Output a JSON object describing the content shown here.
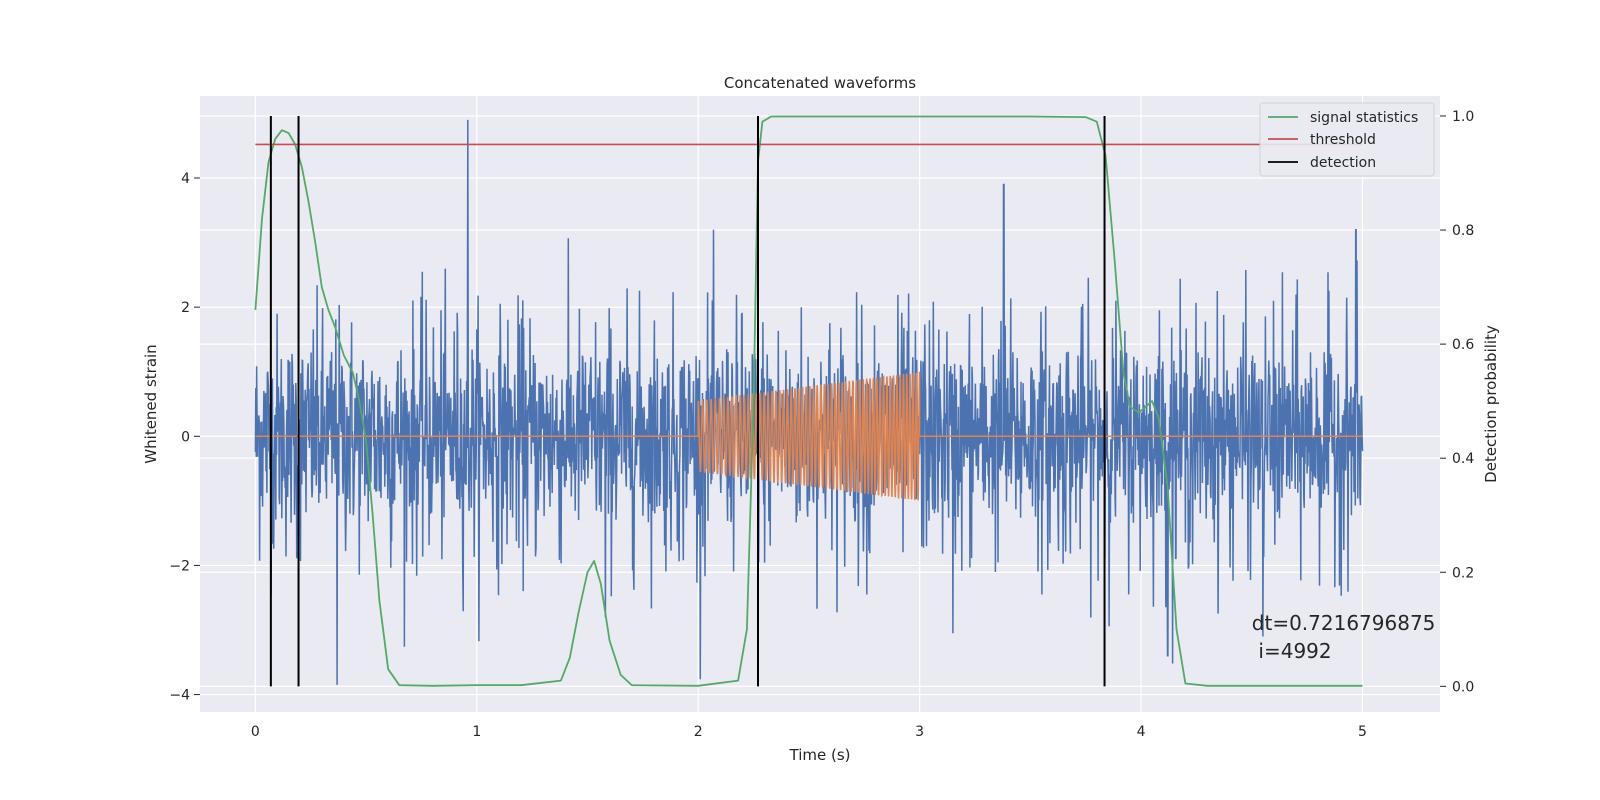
{
  "chart_data": {
    "type": "line",
    "title": "Concatenated waveforms",
    "xlabel": "Time (s)",
    "ylabel": "Whitened strain",
    "y2label": "Detection probability",
    "xlim": [
      -0.25,
      5.35
    ],
    "ylim": [
      -4.27,
      5.27
    ],
    "y2lim": [
      -0.045,
      1.035
    ],
    "xticks": [
      0,
      1,
      2,
      3,
      4,
      5
    ],
    "xtick_labels": [
      "0",
      "1",
      "2",
      "3",
      "4",
      "5"
    ],
    "yticks": [
      -4,
      -2,
      0,
      2,
      4
    ],
    "ytick_labels": [
      "−4",
      "−2",
      "0",
      "2",
      "4"
    ],
    "y2ticks": [
      0.0,
      0.2,
      0.4,
      0.6,
      0.8,
      1.0
    ],
    "y2tick_labels": [
      "0.0",
      "0.2",
      "0.4",
      "0.6",
      "0.8",
      "1.0"
    ],
    "grid": true,
    "legend_position": "top-right",
    "colors": {
      "noise": "#4c72b0",
      "signal": "#dd8452",
      "statistics": "#55a868",
      "threshold": "#c44e52",
      "detection": "#000000",
      "background": "#eaeaf2",
      "grid": "#ffffff"
    },
    "noise": {
      "x_range": [
        0,
        5
      ],
      "typical_amplitude": 1.3,
      "peak_samples": [
        {
          "x": 0.96,
          "y": 4.9
        },
        {
          "x": 3.38,
          "y": 3.9
        },
        {
          "x": 4.97,
          "y": 3.2
        },
        {
          "x": 2.07,
          "y": 3.2
        },
        {
          "x": 0.37,
          "y": -3.85
        },
        {
          "x": 4.55,
          "y": -3.1
        },
        {
          "x": 4.12,
          "y": -3.4
        },
        {
          "x": 1.58,
          "y": -2.8
        },
        {
          "x": 3.15,
          "y": -3.05
        }
      ]
    },
    "injected_signal": {
      "name": "",
      "x_start": 2.0,
      "x_end": 3.0,
      "amp_start": 0.55,
      "amp_end": 1.0,
      "cycles": 60
    },
    "series": [
      {
        "name": "signal statistics",
        "axis": "right",
        "x": [
          0.0,
          0.03,
          0.06,
          0.09,
          0.12,
          0.15,
          0.18,
          0.21,
          0.24,
          0.27,
          0.3,
          0.33,
          0.36,
          0.4,
          0.44,
          0.47,
          0.5,
          0.53,
          0.56,
          0.6,
          0.65,
          0.8,
          1.0,
          1.2,
          1.38,
          1.42,
          1.46,
          1.5,
          1.53,
          1.56,
          1.6,
          1.65,
          1.7,
          2.0,
          2.18,
          2.22,
          2.25,
          2.27,
          2.29,
          2.33,
          2.5,
          3.0,
          3.5,
          3.75,
          3.8,
          3.84,
          3.88,
          3.92,
          3.95,
          3.99,
          4.02,
          4.05,
          4.08,
          4.12,
          4.16,
          4.2,
          4.3,
          5.0
        ],
        "y": [
          0.66,
          0.82,
          0.92,
          0.96,
          0.975,
          0.97,
          0.95,
          0.91,
          0.85,
          0.78,
          0.7,
          0.66,
          0.63,
          0.58,
          0.55,
          0.5,
          0.43,
          0.3,
          0.15,
          0.03,
          0.002,
          0.001,
          0.002,
          0.002,
          0.01,
          0.05,
          0.13,
          0.2,
          0.22,
          0.18,
          0.08,
          0.02,
          0.002,
          0.001,
          0.01,
          0.1,
          0.5,
          0.92,
          0.99,
          0.999,
          0.999,
          0.999,
          0.999,
          0.998,
          0.99,
          0.93,
          0.75,
          0.55,
          0.49,
          0.48,
          0.49,
          0.5,
          0.47,
          0.35,
          0.1,
          0.005,
          0.001,
          0.001
        ]
      },
      {
        "name": "threshold",
        "axis": "right",
        "x": [
          0,
          5
        ],
        "y": [
          0.95,
          0.95
        ]
      },
      {
        "name": "detection",
        "axis": "right",
        "type": "vlines",
        "x": [
          0.07,
          0.195,
          2.27,
          3.835
        ],
        "ymin": 0.0,
        "ymax": 1.0
      }
    ],
    "annotations": [
      {
        "text": "dt=0.7216796875",
        "x": 4.5,
        "y": -3.0
      },
      {
        "text": "i=4992",
        "x": 4.53,
        "y": -3.43
      }
    ]
  }
}
